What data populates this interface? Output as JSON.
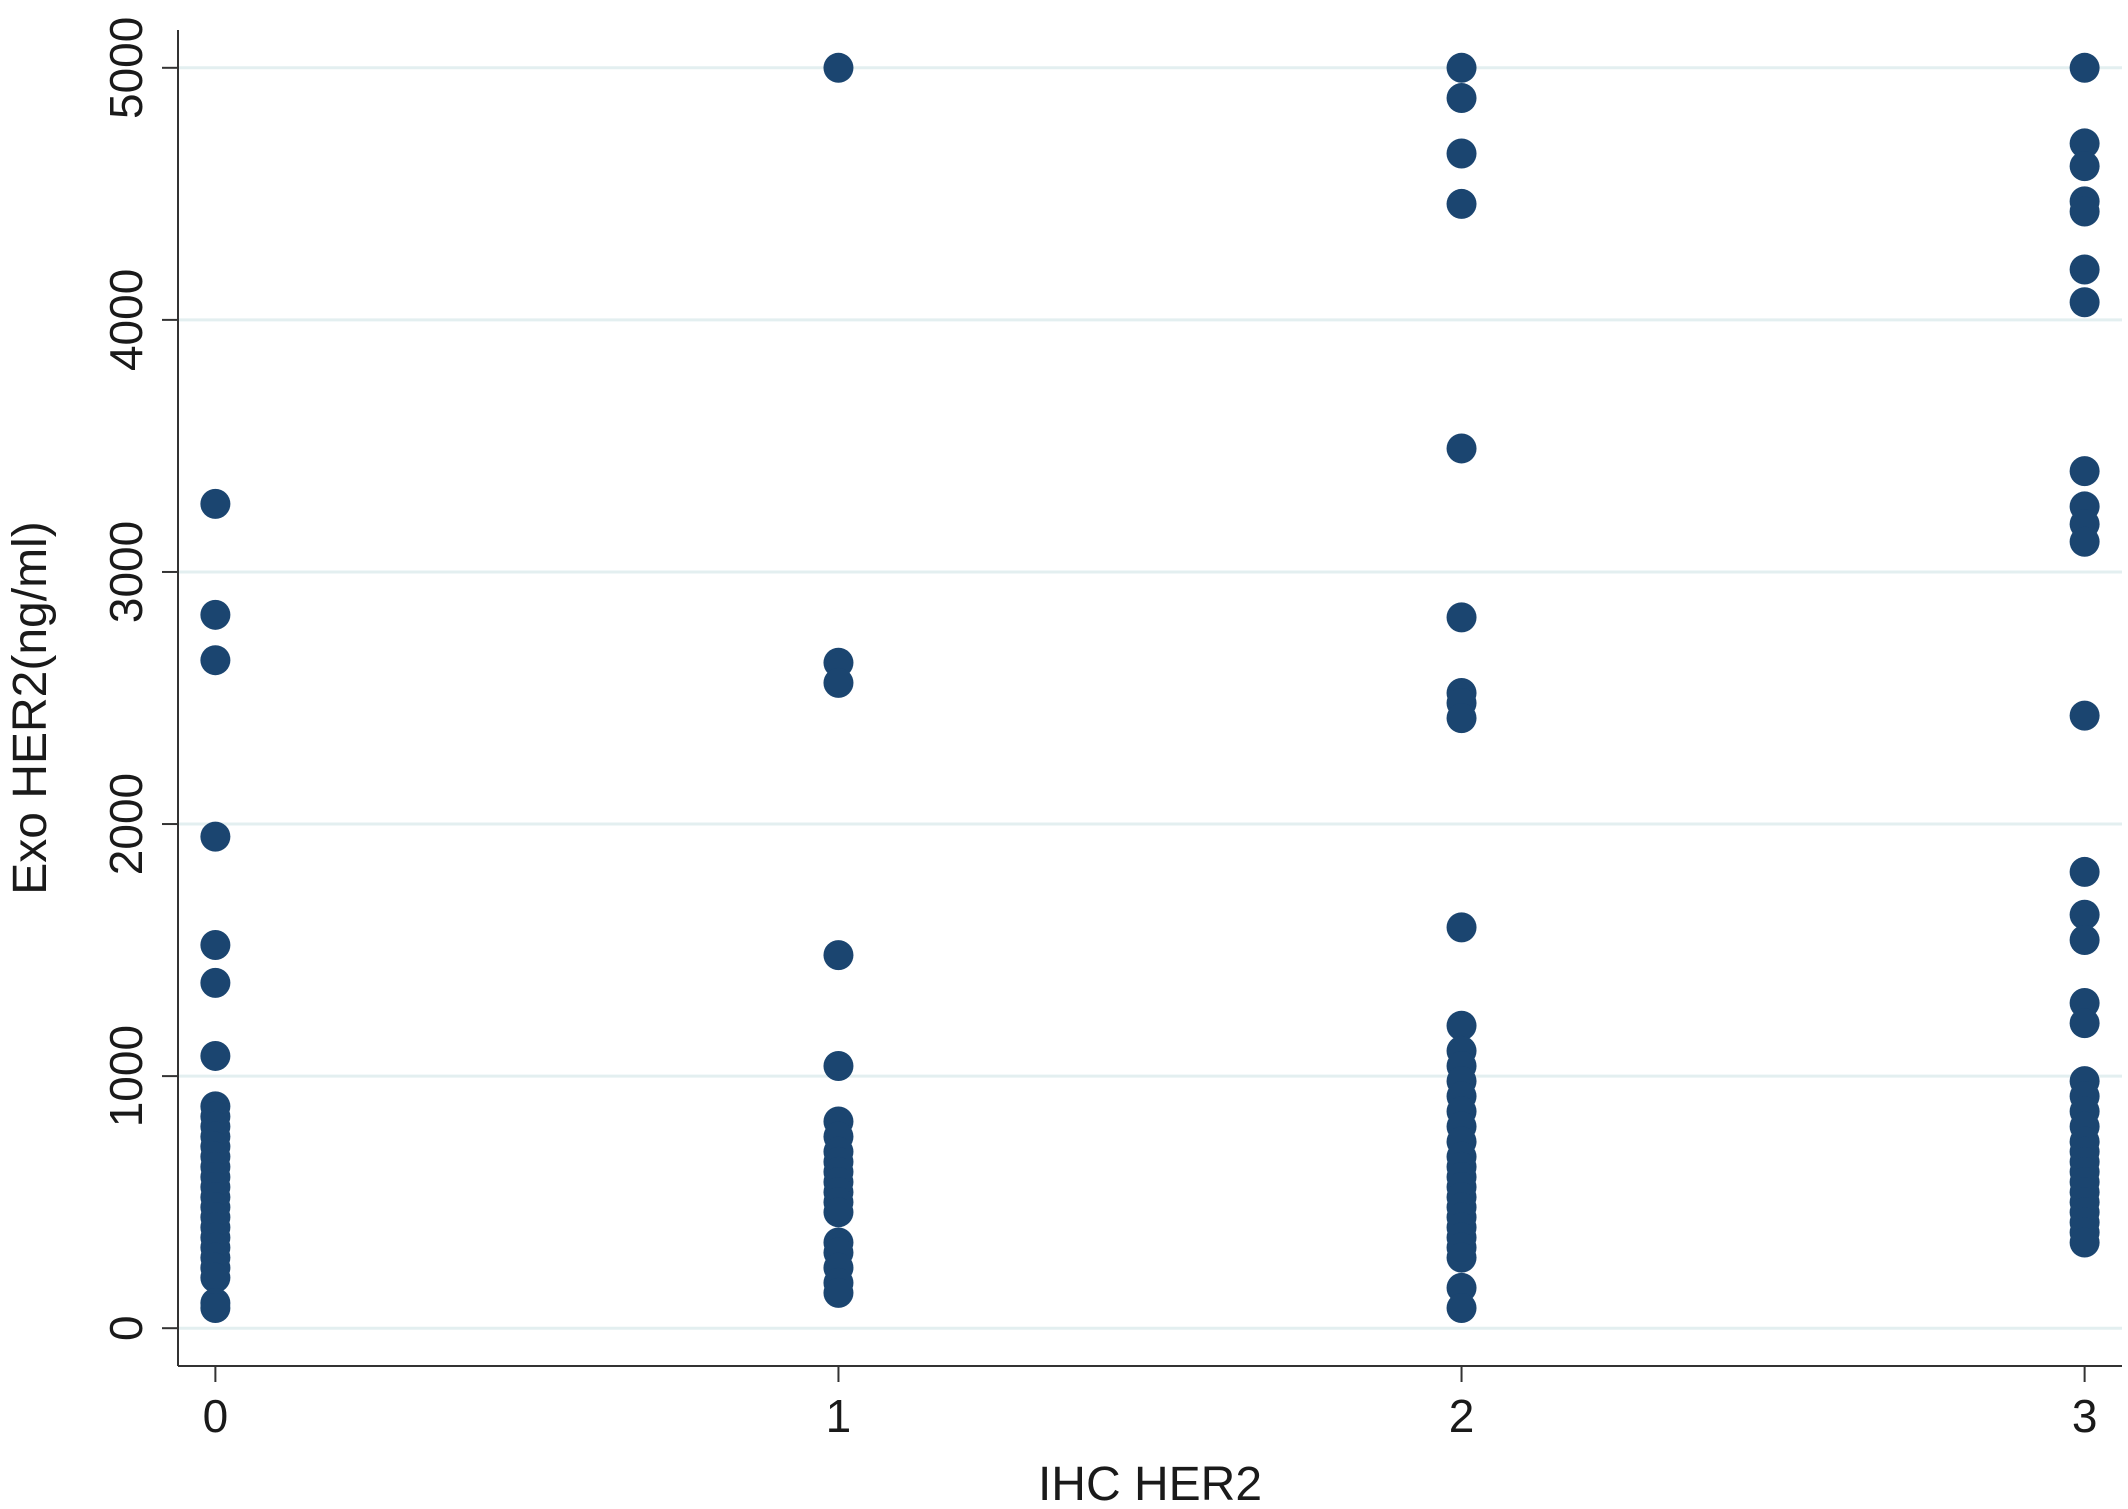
{
  "chart_data": {
    "type": "scatter",
    "title": "",
    "xlabel": "IHC HER2",
    "ylabel": "Exo HER2(ng/ml)",
    "xlim": [
      -0.06,
      3.06
    ],
    "ylim": [
      -150,
      5150
    ],
    "xticks": [
      "0",
      "1",
      "2",
      "3"
    ],
    "yticks": [
      "0",
      "1000",
      "2000",
      "3000",
      "4000",
      "5000"
    ],
    "grid": true,
    "legend": "none",
    "colors": {
      "marker": "#1b4570",
      "grid": "#e3eff0",
      "axis": "#333333"
    },
    "series": [
      {
        "points": [
          {
            "x": 0,
            "y": 3270
          },
          {
            "x": 0,
            "y": 2830
          },
          {
            "x": 0,
            "y": 2650
          },
          {
            "x": 0,
            "y": 1950
          },
          {
            "x": 0,
            "y": 1520
          },
          {
            "x": 0,
            "y": 1370
          },
          {
            "x": 0,
            "y": 1080
          },
          {
            "x": 0,
            "y": 880
          },
          {
            "x": 0,
            "y": 840
          },
          {
            "x": 0,
            "y": 800
          },
          {
            "x": 0,
            "y": 760
          },
          {
            "x": 0,
            "y": 720
          },
          {
            "x": 0,
            "y": 680
          },
          {
            "x": 0,
            "y": 640
          },
          {
            "x": 0,
            "y": 600
          },
          {
            "x": 0,
            "y": 560
          },
          {
            "x": 0,
            "y": 520
          },
          {
            "x": 0,
            "y": 480
          },
          {
            "x": 0,
            "y": 440
          },
          {
            "x": 0,
            "y": 400
          },
          {
            "x": 0,
            "y": 360
          },
          {
            "x": 0,
            "y": 320
          },
          {
            "x": 0,
            "y": 280
          },
          {
            "x": 0,
            "y": 240
          },
          {
            "x": 0,
            "y": 200
          },
          {
            "x": 0,
            "y": 100
          },
          {
            "x": 0,
            "y": 80
          },
          {
            "x": 1,
            "y": 5000
          },
          {
            "x": 1,
            "y": 2640
          },
          {
            "x": 1,
            "y": 2560
          },
          {
            "x": 1,
            "y": 1480
          },
          {
            "x": 1,
            "y": 1040
          },
          {
            "x": 1,
            "y": 820
          },
          {
            "x": 1,
            "y": 760
          },
          {
            "x": 1,
            "y": 700
          },
          {
            "x": 1,
            "y": 660
          },
          {
            "x": 1,
            "y": 620
          },
          {
            "x": 1,
            "y": 580
          },
          {
            "x": 1,
            "y": 540
          },
          {
            "x": 1,
            "y": 500
          },
          {
            "x": 1,
            "y": 460
          },
          {
            "x": 1,
            "y": 340
          },
          {
            "x": 1,
            "y": 300
          },
          {
            "x": 1,
            "y": 240
          },
          {
            "x": 1,
            "y": 180
          },
          {
            "x": 1,
            "y": 140
          },
          {
            "x": 2,
            "y": 5000
          },
          {
            "x": 2,
            "y": 4880
          },
          {
            "x": 2,
            "y": 4660
          },
          {
            "x": 2,
            "y": 4460
          },
          {
            "x": 2,
            "y": 3490
          },
          {
            "x": 2,
            "y": 2820
          },
          {
            "x": 2,
            "y": 2520
          },
          {
            "x": 2,
            "y": 2480
          },
          {
            "x": 2,
            "y": 2420
          },
          {
            "x": 2,
            "y": 1590
          },
          {
            "x": 2,
            "y": 1200
          },
          {
            "x": 2,
            "y": 1100
          },
          {
            "x": 2,
            "y": 1040
          },
          {
            "x": 2,
            "y": 980
          },
          {
            "x": 2,
            "y": 920
          },
          {
            "x": 2,
            "y": 860
          },
          {
            "x": 2,
            "y": 800
          },
          {
            "x": 2,
            "y": 740
          },
          {
            "x": 2,
            "y": 680
          },
          {
            "x": 2,
            "y": 640
          },
          {
            "x": 2,
            "y": 600
          },
          {
            "x": 2,
            "y": 560
          },
          {
            "x": 2,
            "y": 520
          },
          {
            "x": 2,
            "y": 480
          },
          {
            "x": 2,
            "y": 440
          },
          {
            "x": 2,
            "y": 400
          },
          {
            "x": 2,
            "y": 360
          },
          {
            "x": 2,
            "y": 320
          },
          {
            "x": 2,
            "y": 280
          },
          {
            "x": 2,
            "y": 160
          },
          {
            "x": 2,
            "y": 80
          },
          {
            "x": 3,
            "y": 5000
          },
          {
            "x": 3,
            "y": 4700
          },
          {
            "x": 3,
            "y": 4610
          },
          {
            "x": 3,
            "y": 4470
          },
          {
            "x": 3,
            "y": 4430
          },
          {
            "x": 3,
            "y": 4200
          },
          {
            "x": 3,
            "y": 4070
          },
          {
            "x": 3,
            "y": 3400
          },
          {
            "x": 3,
            "y": 3260
          },
          {
            "x": 3,
            "y": 3190
          },
          {
            "x": 3,
            "y": 3120
          },
          {
            "x": 3,
            "y": 2430
          },
          {
            "x": 3,
            "y": 1810
          },
          {
            "x": 3,
            "y": 1640
          },
          {
            "x": 3,
            "y": 1540
          },
          {
            "x": 3,
            "y": 1290
          },
          {
            "x": 3,
            "y": 1210
          },
          {
            "x": 3,
            "y": 980
          },
          {
            "x": 3,
            "y": 920
          },
          {
            "x": 3,
            "y": 860
          },
          {
            "x": 3,
            "y": 800
          },
          {
            "x": 3,
            "y": 740
          },
          {
            "x": 3,
            "y": 700
          },
          {
            "x": 3,
            "y": 660
          },
          {
            "x": 3,
            "y": 620
          },
          {
            "x": 3,
            "y": 580
          },
          {
            "x": 3,
            "y": 540
          },
          {
            "x": 3,
            "y": 500
          },
          {
            "x": 3,
            "y": 460
          },
          {
            "x": 3,
            "y": 420
          },
          {
            "x": 3,
            "y": 380
          },
          {
            "x": 3,
            "y": 340
          }
        ]
      }
    ]
  }
}
